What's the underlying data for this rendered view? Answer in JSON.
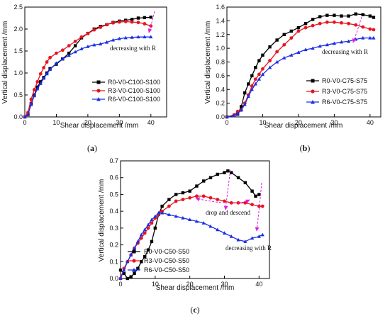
{
  "chart_data": [
    {
      "type": "line",
      "caption": {
        "open": "(",
        "letter": "a",
        "close": ")"
      },
      "xlabel": "Shear displacement /mm",
      "ylabel": "Vertical displacement /mm",
      "xlim": [
        0,
        45
      ],
      "ylim": [
        0,
        2.5
      ],
      "xticks": [
        0,
        10,
        20,
        30,
        40
      ],
      "yticks": [
        0.0,
        0.5,
        1.0,
        1.5,
        2.0,
        2.5
      ],
      "ytick_labels": [
        "0.0",
        "0.5",
        "1.0",
        "1.5",
        "2.0",
        "2.5"
      ],
      "legend_position": "bottom-right",
      "annotations": [
        {
          "text": "decreasing with R"
        }
      ],
      "series": [
        {
          "name": "R0-V0-C100-S100",
          "color": "#000000",
          "marker": "square",
          "x": [
            0,
            1,
            2,
            3,
            4,
            5,
            6,
            7,
            8,
            10,
            12,
            14,
            16,
            18,
            20,
            22,
            24,
            26,
            28,
            30,
            32,
            34,
            36,
            38,
            40
          ],
          "y": [
            0,
            0.05,
            0.3,
            0.5,
            0.68,
            0.8,
            0.9,
            1.0,
            1.1,
            1.2,
            1.32,
            1.45,
            1.62,
            1.8,
            1.9,
            2.0,
            2.06,
            2.1,
            2.15,
            2.18,
            2.2,
            2.22,
            2.25,
            2.26,
            2.27
          ]
        },
        {
          "name": "R3-V0-C100-S100",
          "color": "#e8141e",
          "marker": "circle",
          "x": [
            0,
            1,
            2,
            3,
            4,
            5,
            6,
            7,
            8,
            10,
            12,
            14,
            16,
            18,
            20,
            22,
            24,
            26,
            28,
            30,
            32,
            34,
            36,
            38,
            40
          ],
          "y": [
            0,
            0.1,
            0.4,
            0.62,
            0.8,
            0.98,
            1.12,
            1.25,
            1.35,
            1.45,
            1.52,
            1.62,
            1.72,
            1.82,
            1.9,
            1.98,
            2.04,
            2.1,
            2.14,
            2.16,
            2.17,
            2.16,
            2.15,
            2.12,
            2.07
          ]
        },
        {
          "name": "R6-V0-C100-S100",
          "color": "#1a2ee6",
          "marker": "triangle",
          "x": [
            0,
            1,
            2,
            3,
            4,
            5,
            6,
            7,
            8,
            10,
            12,
            14,
            16,
            18,
            20,
            22,
            24,
            26,
            28,
            30,
            32,
            34,
            36,
            38,
            40
          ],
          "y": [
            0,
            0.05,
            0.28,
            0.48,
            0.64,
            0.76,
            0.88,
            0.98,
            1.08,
            1.22,
            1.32,
            1.4,
            1.48,
            1.55,
            1.6,
            1.64,
            1.66,
            1.7,
            1.75,
            1.78,
            1.8,
            1.81,
            1.82,
            1.82,
            1.82
          ]
        }
      ]
    },
    {
      "type": "line",
      "caption": {
        "open": "(",
        "letter": "b",
        "close": ")"
      },
      "xlabel": "Shear displacement /mm",
      "ylabel": "Vertical displacement /mm",
      "xlim": [
        0,
        43
      ],
      "ylim": [
        0,
        1.6
      ],
      "xticks": [
        0,
        10,
        20,
        30,
        40
      ],
      "yticks": [
        0.0,
        0.2,
        0.4,
        0.6,
        0.8,
        1.0,
        1.2,
        1.4,
        1.6
      ],
      "ytick_labels": [
        "0.0",
        "0.2",
        "0.4",
        "0.6",
        "0.8",
        "1.0",
        "1.2",
        "1.4",
        "1.6"
      ],
      "legend_position": "bottom-right",
      "annotations": [
        {
          "text": "decreasing with R"
        }
      ],
      "series": [
        {
          "name": "R0-V0-C75-S75",
          "color": "#000000",
          "marker": "square",
          "x": [
            0,
            2,
            3,
            4,
            5,
            6,
            7,
            8,
            9,
            10,
            12,
            14,
            16,
            18,
            20,
            22,
            24,
            26,
            28,
            30,
            32,
            34,
            36,
            38,
            40,
            41
          ],
          "y": [
            0,
            0.02,
            0.04,
            0.15,
            0.35,
            0.48,
            0.6,
            0.72,
            0.82,
            0.9,
            1.02,
            1.12,
            1.2,
            1.25,
            1.3,
            1.36,
            1.42,
            1.46,
            1.48,
            1.48,
            1.47,
            1.47,
            1.5,
            1.49,
            1.47,
            1.45
          ]
        },
        {
          "name": "R3-V0-C75-S75",
          "color": "#e8141e",
          "marker": "circle",
          "x": [
            0,
            2,
            3,
            4,
            5,
            6,
            7,
            8,
            9,
            10,
            12,
            14,
            16,
            18,
            20,
            22,
            24,
            26,
            28,
            30,
            32,
            34,
            36,
            38,
            40,
            41
          ],
          "y": [
            0,
            0.03,
            0.08,
            0.1,
            0.2,
            0.32,
            0.45,
            0.55,
            0.62,
            0.7,
            0.82,
            0.95,
            1.05,
            1.15,
            1.25,
            1.3,
            1.33,
            1.36,
            1.38,
            1.38,
            1.37,
            1.36,
            1.34,
            1.31,
            1.28,
            1.27
          ]
        },
        {
          "name": "R6-V0-C75-S75",
          "color": "#1a2ee6",
          "marker": "triangle",
          "x": [
            0,
            2,
            3,
            4,
            5,
            6,
            7,
            8,
            9,
            10,
            12,
            14,
            16,
            18,
            20,
            22,
            24,
            26,
            28,
            30,
            32,
            34,
            36,
            38,
            40,
            41
          ],
          "y": [
            0,
            0.02,
            0.05,
            0.1,
            0.18,
            0.3,
            0.4,
            0.48,
            0.55,
            0.62,
            0.72,
            0.8,
            0.86,
            0.9,
            0.94,
            0.98,
            1.0,
            1.03,
            1.05,
            1.07,
            1.09,
            1.1,
            1.13,
            1.15,
            1.15,
            1.15
          ]
        }
      ]
    },
    {
      "type": "line",
      "caption": {
        "open": "(",
        "letter": "c",
        "close": ")"
      },
      "xlabel": "Shear displacement /mm",
      "ylabel": "Vertical displacement /mm",
      "xlim": [
        0,
        43
      ],
      "ylim": [
        0,
        0.7
      ],
      "xticks": [
        0,
        10,
        20,
        30,
        40
      ],
      "yticks": [
        0.0,
        0.1,
        0.2,
        0.3,
        0.4,
        0.5,
        0.6,
        0.7
      ],
      "ytick_labels": [
        "0.0",
        "0.1",
        "0.2",
        "0.3",
        "0.4",
        "0.5",
        "0.6",
        "0.7"
      ],
      "legend_position": "bottom-left",
      "annotations": [
        {
          "text": "drop and descend"
        },
        {
          "text": "decreasing with R"
        }
      ],
      "series": [
        {
          "name": "R0-V0-C50-S50",
          "color": "#000000",
          "marker": "square",
          "x": [
            0,
            1,
            2,
            3,
            4,
            5,
            6,
            7,
            8,
            9,
            10,
            11,
            12,
            14,
            16,
            18,
            20,
            22,
            24,
            26,
            28,
            30,
            31,
            32,
            34,
            36,
            38,
            39,
            40
          ],
          "y": [
            0.05,
            0.03,
            0,
            0.01,
            0.03,
            0.06,
            0.1,
            0.13,
            0.17,
            0.22,
            0.3,
            0.38,
            0.43,
            0.47,
            0.5,
            0.51,
            0.52,
            0.55,
            0.58,
            0.6,
            0.62,
            0.63,
            0.64,
            0.63,
            0.6,
            0.57,
            0.52,
            0.49,
            0.5
          ]
        },
        {
          "name": "R3-V0-C50-S50",
          "color": "#e8141e",
          "marker": "circle",
          "x": [
            0,
            1,
            2,
            3,
            4,
            5,
            6,
            7,
            8,
            9,
            10,
            11,
            12,
            14,
            16,
            18,
            20,
            22,
            24,
            26,
            28,
            30,
            32,
            34,
            36,
            38,
            40,
            41
          ],
          "y": [
            0,
            0.06,
            0.1,
            0.14,
            0.18,
            0.21,
            0.24,
            0.27,
            0.3,
            0.33,
            0.36,
            0.38,
            0.4,
            0.43,
            0.46,
            0.47,
            0.48,
            0.49,
            0.49,
            0.48,
            0.47,
            0.46,
            0.45,
            0.45,
            0.45,
            0.44,
            0.43,
            0.43
          ]
        },
        {
          "name": "R6-V0-C50-S50",
          "color": "#1a2ee6",
          "marker": "triangle",
          "x": [
            0,
            1,
            2,
            3,
            4,
            5,
            6,
            7,
            8,
            9,
            10,
            11,
            12,
            14,
            16,
            18,
            20,
            22,
            24,
            26,
            28,
            30,
            32,
            34,
            36,
            38,
            40,
            41
          ],
          "y": [
            0,
            0.05,
            0.1,
            0.14,
            0.18,
            0.22,
            0.26,
            0.29,
            0.32,
            0.35,
            0.37,
            0.39,
            0.39,
            0.38,
            0.37,
            0.36,
            0.35,
            0.34,
            0.33,
            0.31,
            0.29,
            0.27,
            0.25,
            0.23,
            0.22,
            0.24,
            0.25,
            0.26
          ]
        }
      ]
    }
  ]
}
